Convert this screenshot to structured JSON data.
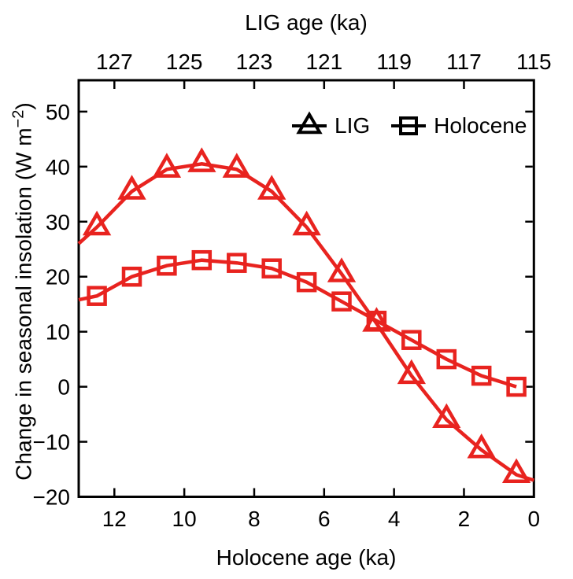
{
  "figure_colors": {
    "series_red": "#e8231f",
    "axis_black": "#000000",
    "background": "#ffffff"
  },
  "chart_data": {
    "type": "line",
    "title": "",
    "x_axis_bottom": {
      "label": "Holocene age (ka)",
      "ticks": [
        12,
        10,
        8,
        6,
        4,
        2,
        0
      ],
      "range": [
        13.02,
        0
      ],
      "reversed": true,
      "units": "ka"
    },
    "x_axis_top": {
      "label": "LIG age (ka)",
      "ticks": [
        127,
        125,
        123,
        121,
        119,
        117,
        115
      ],
      "offset_from_holocene": 115,
      "units": "ka"
    },
    "y_axis": {
      "label": "Change in seasonal insolation (W m−2)",
      "label_parts": {
        "main": "Change in seasonal insolation (W m",
        "sup": "−2",
        "close": ")"
      },
      "ticks": [
        50,
        40,
        30,
        20,
        10,
        0,
        -10,
        -20
      ],
      "range": [
        -20,
        55.7
      ],
      "units": "W m−2"
    },
    "grid": false,
    "legend_position": "upper right inside",
    "series": [
      {
        "name": "LIG",
        "marker": "triangle",
        "color": "#e8231f",
        "data": [
          [
            12.5,
            29
          ],
          [
            11.5,
            35.5
          ],
          [
            10.5,
            39.5
          ],
          [
            9.5,
            40.5
          ],
          [
            8.5,
            39.5
          ],
          [
            7.5,
            35.5
          ],
          [
            6.5,
            29
          ],
          [
            5.5,
            20.5
          ],
          [
            4.5,
            11.5
          ],
          [
            3.5,
            2
          ],
          [
            2.5,
            -6
          ],
          [
            1.5,
            -11.5
          ],
          [
            0.5,
            -16
          ]
        ],
        "line_start": [
          13.02,
          26
        ],
        "line_end": [
          0,
          -17
        ]
      },
      {
        "name": "Holocene",
        "marker": "square",
        "color": "#e8231f",
        "data": [
          [
            12.5,
            16.5
          ],
          [
            11.5,
            20
          ],
          [
            10.5,
            22
          ],
          [
            9.5,
            23
          ],
          [
            8.5,
            22.5
          ],
          [
            7.5,
            21.5
          ],
          [
            6.5,
            19
          ],
          [
            5.5,
            15.5
          ],
          [
            4.5,
            12
          ],
          [
            3.5,
            8.5
          ],
          [
            2.5,
            5
          ],
          [
            1.5,
            2
          ],
          [
            0.5,
            0
          ]
        ],
        "line_start": [
          13.02,
          15.8
        ],
        "line_end": null
      }
    ]
  }
}
